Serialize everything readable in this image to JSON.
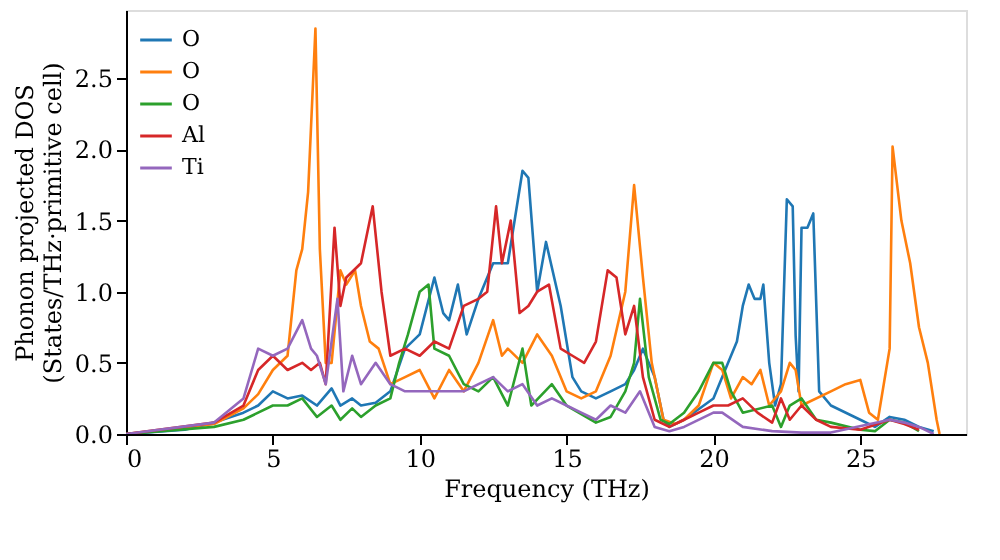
{
  "chart_data": {
    "type": "line",
    "xlabel": "Frequency (THz)",
    "ylabel": "Phonon projected DOS\n(States/THz·primitive cell)",
    "xlim": [
      0,
      28.6
    ],
    "ylim": [
      0,
      2.98
    ],
    "xticks": [
      0,
      5,
      10,
      15,
      20,
      25
    ],
    "yticks": [
      {
        "value": 0,
        "label": "0.0"
      },
      {
        "value": 0.5,
        "label": "0.5"
      },
      {
        "value": 1,
        "label": "1.0"
      },
      {
        "value": 1.5,
        "label": "1.5"
      },
      {
        "value": 2,
        "label": "2.0"
      },
      {
        "value": 2.5,
        "label": "2.5"
      }
    ],
    "grid": false,
    "legend": "top left",
    "marker": "none",
    "line_style": "solid",
    "series": [
      {
        "name": "O",
        "color": "#1f77b4",
        "x": [
          0,
          2,
          3,
          4,
          4.5,
          5,
          5.5,
          6,
          6.5,
          7,
          7.3,
          7.7,
          8,
          8.5,
          9,
          9.5,
          10,
          10.5,
          10.8,
          11,
          11.3,
          11.6,
          12,
          12.5,
          13,
          13.5,
          13.7,
          14,
          14.3,
          14.8,
          15.2,
          15.5,
          16,
          16.5,
          17,
          17.3,
          17.6,
          18,
          18.3,
          18.5,
          19,
          20,
          20.5,
          20.8,
          21,
          21.2,
          21.4,
          21.6,
          21.7,
          21.9,
          22.1,
          22.3,
          22.5,
          22.7,
          22.8,
          22.9,
          23,
          23.2,
          23.4,
          23.6,
          24,
          25,
          25.5,
          26,
          26.5,
          27,
          27.5
        ],
        "values": [
          0,
          0.03,
          0.08,
          0.15,
          0.2,
          0.3,
          0.25,
          0.27,
          0.2,
          0.32,
          0.2,
          0.25,
          0.2,
          0.22,
          0.3,
          0.6,
          0.7,
          1.1,
          0.85,
          0.8,
          1.05,
          0.7,
          0.95,
          1.2,
          1.2,
          1.85,
          1.8,
          1.0,
          1.35,
          0.9,
          0.4,
          0.3,
          0.25,
          0.3,
          0.35,
          0.45,
          0.6,
          0.4,
          0.1,
          0.05,
          0.1,
          0.25,
          0.5,
          0.65,
          0.9,
          1.05,
          0.95,
          0.95,
          1.05,
          0.5,
          0.2,
          0.35,
          1.65,
          1.6,
          0.69,
          0.3,
          1.45,
          1.45,
          1.55,
          0.3,
          0.2,
          0.1,
          0.05,
          0.12,
          0.1,
          0.05,
          0.02
        ]
      },
      {
        "name": "O",
        "color": "#ff7f0e",
        "x": [
          0,
          3,
          4,
          4.5,
          5,
          5.5,
          5.8,
          6,
          6.2,
          6.45,
          6.6,
          6.8,
          7,
          7.3,
          7.5,
          7.8,
          8,
          8.3,
          8.6,
          9,
          9.5,
          10,
          10.5,
          11,
          11.5,
          12,
          12.5,
          12.8,
          13,
          13.5,
          14,
          14.5,
          15,
          15.5,
          16,
          16.5,
          17,
          17.3,
          17.6,
          17.9,
          18.3,
          18.7,
          19,
          19.5,
          20,
          20.3,
          20.6,
          21,
          21.3,
          21.6,
          21.9,
          22.3,
          22.6,
          22.8,
          23,
          24,
          24.5,
          25,
          25.3,
          25.6,
          26,
          26.1,
          26.4,
          26.7,
          27,
          27.3,
          27.6,
          27.7
        ],
        "values": [
          0,
          0.07,
          0.18,
          0.28,
          0.45,
          0.55,
          1.15,
          1.3,
          1.7,
          2.85,
          1.3,
          0.5,
          0.5,
          1.15,
          1.05,
          1.15,
          0.9,
          0.65,
          0.6,
          0.35,
          0.4,
          0.45,
          0.25,
          0.45,
          0.3,
          0.5,
          0.8,
          0.55,
          0.6,
          0.5,
          0.7,
          0.55,
          0.3,
          0.25,
          0.3,
          0.55,
          1.0,
          1.75,
          1.1,
          0.5,
          0.1,
          0.07,
          0.1,
          0.2,
          0.5,
          0.45,
          0.25,
          0.4,
          0.35,
          0.45,
          0.2,
          0.3,
          0.5,
          0.45,
          0.2,
          0.3,
          0.35,
          0.38,
          0.15,
          0.1,
          0.6,
          2.02,
          1.5,
          1.2,
          0.75,
          0.5,
          0.1,
          0
        ]
      },
      {
        "name": "O",
        "color": "#2ca02c",
        "x": [
          0,
          3,
          4,
          5,
          5.5,
          6,
          6.5,
          7,
          7.3,
          7.7,
          8,
          8.5,
          9,
          9.3,
          9.6,
          10,
          10.3,
          10.5,
          11,
          11.5,
          12,
          12.5,
          13,
          13.5,
          13.8,
          14.5,
          15,
          16,
          16.5,
          17,
          17.3,
          17.5,
          17.8,
          18.2,
          18.5,
          19,
          19.5,
          20,
          20.3,
          20.6,
          21,
          22,
          22.3,
          22.6,
          23,
          23.5,
          24,
          25,
          25.5,
          26,
          26.5,
          27
        ],
        "values": [
          0,
          0.05,
          0.1,
          0.2,
          0.2,
          0.25,
          0.12,
          0.2,
          0.1,
          0.18,
          0.12,
          0.2,
          0.25,
          0.5,
          0.7,
          1.0,
          1.05,
          0.6,
          0.55,
          0.35,
          0.3,
          0.4,
          0.2,
          0.6,
          0.2,
          0.35,
          0.2,
          0.08,
          0.12,
          0.3,
          0.5,
          0.95,
          0.4,
          0.1,
          0.07,
          0.15,
          0.3,
          0.5,
          0.5,
          0.3,
          0.15,
          0.2,
          0.05,
          0.2,
          0.25,
          0.1,
          0.08,
          0.03,
          0.02,
          0.1,
          0.08,
          0.02
        ]
      },
      {
        "name": "Al",
        "color": "#d62728",
        "x": [
          0,
          3,
          4,
          4.5,
          5,
          5.5,
          6,
          6.3,
          6.6,
          6.8,
          7.1,
          7.3,
          7.5,
          8,
          8.4,
          8.7,
          9,
          9.5,
          10,
          10.5,
          11,
          11.5,
          12,
          12.3,
          12.6,
          12.8,
          13.1,
          13.4,
          13.7,
          14,
          14.4,
          14.8,
          15.2,
          15.6,
          16,
          16.4,
          16.7,
          17,
          17.3,
          17.6,
          18,
          18.5,
          19,
          19.5,
          20,
          20.5,
          21,
          21.5,
          22,
          22.3,
          22.6,
          23,
          23.5,
          24,
          25,
          26,
          26.5,
          27
        ],
        "values": [
          0,
          0.08,
          0.2,
          0.45,
          0.55,
          0.45,
          0.5,
          0.45,
          0.5,
          0.35,
          1.45,
          0.9,
          1.1,
          1.2,
          1.6,
          1.0,
          0.55,
          0.6,
          0.55,
          0.65,
          0.6,
          0.9,
          0.95,
          1.0,
          1.6,
          1.2,
          1.5,
          0.85,
          0.9,
          1.0,
          1.05,
          0.6,
          0.55,
          0.5,
          0.65,
          1.15,
          1.1,
          0.7,
          0.9,
          0.4,
          0.1,
          0.05,
          0.1,
          0.15,
          0.2,
          0.2,
          0.25,
          0.15,
          0.08,
          0.25,
          0.1,
          0.2,
          0.1,
          0.05,
          0.03,
          0.1,
          0.07,
          0.03
        ]
      },
      {
        "name": "Ti",
        "color": "#9467bd",
        "x": [
          0,
          3,
          4,
          4.5,
          5,
          5.5,
          6,
          6.3,
          6.5,
          6.8,
          7.2,
          7.4,
          7.7,
          8,
          8.5,
          9,
          9.5,
          10,
          10.5,
          11,
          11.5,
          12,
          12.5,
          13,
          13.5,
          14,
          14.5,
          15,
          15.5,
          16,
          16.5,
          17,
          17.5,
          18,
          18.5,
          19,
          20,
          20.3,
          21,
          22,
          23,
          24,
          26,
          26.5,
          27,
          27.5
        ],
        "values": [
          0,
          0.08,
          0.25,
          0.6,
          0.55,
          0.6,
          0.8,
          0.6,
          0.55,
          0.35,
          0.95,
          0.3,
          0.55,
          0.35,
          0.5,
          0.35,
          0.3,
          0.3,
          0.3,
          0.3,
          0.3,
          0.35,
          0.4,
          0.3,
          0.35,
          0.2,
          0.25,
          0.2,
          0.15,
          0.1,
          0.2,
          0.15,
          0.3,
          0.05,
          0.02,
          0.05,
          0.15,
          0.15,
          0.05,
          0.02,
          0.01,
          0.01,
          0.1,
          0.08,
          0.05,
          0
        ]
      }
    ]
  }
}
